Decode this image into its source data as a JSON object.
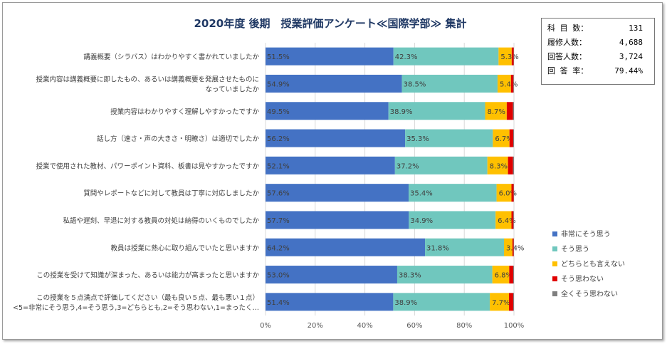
{
  "title": "2020年度 後期　授業評価アンケート≪国際学部≫ 集計",
  "stats": [
    {
      "label": "科 目 数：",
      "value": "131"
    },
    {
      "label": "履修人数：",
      "value": "4,688"
    },
    {
      "label": "回答人数：",
      "value": "3,724"
    },
    {
      "label": "回 答 率：",
      "value": "79.44%"
    }
  ],
  "chart_data": {
    "type": "bar",
    "orientation": "horizontal",
    "stacked": "percent",
    "categories": [
      [
        "講義概要（シラバス）はわかりやすく書かれていましたか"
      ],
      [
        "授業内容は講義概要に即したもの、あるいは講義概要を発展させたものに",
        "なっていましたか"
      ],
      [
        "授業内容はわかりやすく理解しやすかったですか"
      ],
      [
        "話し方（速さ・声の大きさ・明瞭さ）は適切でしたか"
      ],
      [
        "授業で使用された教材、パワーポイント資料、板書は見やすかったですか"
      ],
      [
        "質問やレポートなどに対して教員は丁寧に対応しましたか"
      ],
      [
        "私語や遅刻、早退に対する教員の対処は納得のいくものでしたか"
      ],
      [
        "教員は授業に熱心に取り組んでいたと思いますか"
      ],
      [
        "この授業を受けて知識が深まった、あるいは能力が高まったと思いますか"
      ],
      [
        "この授業を５点満点で評価してください（最も良い５点、最も悪い１点）",
        "<5=非常にそう思う,4=そう思う,3=どちらとも,2=そう思わない,1=まったく…"
      ]
    ],
    "series": [
      {
        "name": "非常にそう思う",
        "color": "#4472c4",
        "values": [
          51.5,
          54.9,
          49.5,
          56.2,
          52.1,
          57.6,
          57.7,
          64.2,
          53.0,
          51.4
        ],
        "labels": [
          "51.5%",
          "54.9%",
          "49.5%",
          "56.2%",
          "52.1%",
          "57.6%",
          "57.7%",
          "64.2%",
          "53.0%",
          "51.4%"
        ]
      },
      {
        "name": "そう思う",
        "color": "#70c7be",
        "values": [
          42.3,
          38.5,
          38.9,
          35.3,
          37.2,
          35.4,
          34.9,
          31.8,
          38.3,
          38.9
        ],
        "labels": [
          "42.3%",
          "38.5%",
          "38.9%",
          "35.3%",
          "37.2%",
          "35.4%",
          "34.9%",
          "31.8%",
          "38.3%",
          "38.9%"
        ]
      },
      {
        "name": "どちらとも言えない",
        "color": "#ffc000",
        "values": [
          5.3,
          5.4,
          8.7,
          6.7,
          8.3,
          6.0,
          6.4,
          3.4,
          6.8,
          7.7
        ],
        "labels": [
          "5.3%",
          "5.4%",
          "8.7%",
          "6.7%",
          "8.3%",
          "6.0%",
          "6.4%",
          "3.4%",
          "6.8%",
          "7.7%"
        ]
      },
      {
        "name": "そう思わない",
        "color": "#e00000",
        "values": [
          0.8,
          1.0,
          2.5,
          1.5,
          2.0,
          0.9,
          0.8,
          0.5,
          1.6,
          1.7
        ]
      },
      {
        "name": "全くそう思わない",
        "color": "#7f7f7f",
        "values": [
          0.1,
          0.2,
          0.4,
          0.3,
          0.4,
          0.1,
          0.2,
          0.1,
          0.3,
          0.3
        ]
      }
    ],
    "xaxis": {
      "min": 0,
      "max": 100,
      "ticks": [
        0,
        20,
        40,
        60,
        80,
        100
      ],
      "tick_labels": [
        "0%",
        "20%",
        "40%",
        "60%",
        "80%",
        "100%"
      ]
    },
    "gridlines": true,
    "legend_position": "right"
  }
}
